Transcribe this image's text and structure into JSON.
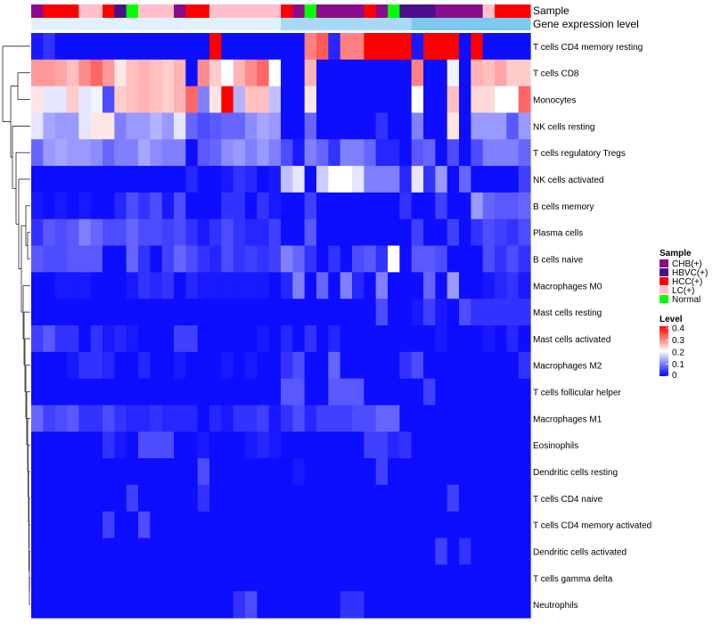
{
  "chart_data": {
    "type": "heatmap",
    "title": "",
    "row_labels": [
      "T cells CD4 memory resting",
      "T cells CD8",
      "Monocytes",
      "NK cells resting",
      "T cells regulatory  Tregs",
      "NK cells activated",
      "B cells memory",
      "Plasma cells",
      "B cells naive",
      "Macrophages M0",
      "Mast cells resting",
      "Mast cells activated",
      "Macrophages M2",
      "T cells follicular helper",
      "Macrophages M1",
      "Eosinophils",
      "Dendritic cells resting",
      "T cells CD4 naive",
      "T cells CD4 memory activated",
      "Dendritic cells activated",
      "T cells gamma delta",
      "Neutrophils"
    ],
    "annotation_tracks": [
      {
        "name": "Sample",
        "values": [
          "CHB(+)",
          "HCC(+)",
          "HCC(+)",
          "HCC(+)",
          "LC(+)",
          "LC(+)",
          "HCC(+)",
          "HBVC(+)",
          "Normal",
          "LC(+)",
          "LC(+)",
          "LC(+)",
          "CHB(+)",
          "HCC(+)",
          "HCC(+)",
          "LC(+)",
          "LC(+)",
          "LC(+)",
          "LC(+)",
          "LC(+)",
          "LC(+)",
          "HCC(+)",
          "CHB(+)",
          "Normal",
          "CHB(+)",
          "CHB(+)",
          "CHB(+)",
          "CHB(+)",
          "HCC(+)",
          "CHB(+)",
          "Normal",
          "HBVC(+)",
          "HBVC(+)",
          "HBVC(+)",
          "CHB(+)",
          "CHB(+)",
          "CHB(+)",
          "CHB(+)",
          "LC(+)",
          "HCC(+)",
          "HCC(+)",
          "HCC(+)"
        ]
      },
      {
        "name": "Gene expression level",
        "values": [
          "low",
          "low",
          "low",
          "low",
          "low",
          "low",
          "low",
          "low",
          "low",
          "low",
          "low",
          "low",
          "low",
          "low",
          "low",
          "low",
          "low",
          "low",
          "low",
          "low",
          "low",
          "mid",
          "mid",
          "mid",
          "mid",
          "mid",
          "mid",
          "mid",
          "mid",
          "mid",
          "mid",
          "mid",
          "high",
          "high",
          "high",
          "high",
          "high",
          "high",
          "high",
          "high",
          "high",
          "high"
        ]
      }
    ],
    "legend_sample": {
      "title": "Sample",
      "entries": [
        {
          "label": "CHB(+)",
          "color": "#8b0d8b"
        },
        {
          "label": "HBVC(+)",
          "color": "#4b0f8b"
        },
        {
          "label": "HCC(+)",
          "color": "#ff0000"
        },
        {
          "label": "LC(+)",
          "color": "#ffc0cb"
        },
        {
          "label": "Normal",
          "color": "#00ff00"
        }
      ]
    },
    "legend_level": {
      "title": "Level",
      "ticks": [
        "0.4",
        "0.3",
        "0.2",
        "0.1",
        "0"
      ],
      "range": [
        0,
        0.4
      ],
      "colors": [
        "#0000ff",
        "#ffffff",
        "#ff0000"
      ]
    },
    "expression_level_colors": {
      "low": "#e0f1fb",
      "mid": "#a9daf5",
      "high": "#7fc8f0"
    },
    "values": [
      [
        0.02,
        0.04,
        0.01,
        0.01,
        0.01,
        0.01,
        0.01,
        0.01,
        0.01,
        0.01,
        0.01,
        0.01,
        0.01,
        0.01,
        0.01,
        0.4,
        0.01,
        0.01,
        0.01,
        0.01,
        0.01,
        0.01,
        0.01,
        0.3,
        0.33,
        0.03,
        0.3,
        0.3,
        0.4,
        0.4,
        0.4,
        0.4,
        0.02,
        0.4,
        0.4,
        0.4,
        0.01,
        0.4,
        0.01,
        0.01,
        0.01,
        0.01
      ],
      [
        0.28,
        0.28,
        0.27,
        0.25,
        0.29,
        0.32,
        0.28,
        0.22,
        0.25,
        0.26,
        0.25,
        0.24,
        0.26,
        0.01,
        0.29,
        0.24,
        0.2,
        0.26,
        0.29,
        0.32,
        0.2,
        0.01,
        0.01,
        0.26,
        0.01,
        0.01,
        0.01,
        0.01,
        0.01,
        0.01,
        0.01,
        0.01,
        0.3,
        0.01,
        0.01,
        0.19,
        0.01,
        0.26,
        0.25,
        0.27,
        0.24,
        0.24
      ],
      [
        0.22,
        0.18,
        0.18,
        0.24,
        0.18,
        0.19,
        0.06,
        0.24,
        0.25,
        0.26,
        0.25,
        0.24,
        0.26,
        0.32,
        0.1,
        0.22,
        0.4,
        0.14,
        0.25,
        0.25,
        0.15,
        0.01,
        0.01,
        0.22,
        0.01,
        0.01,
        0.01,
        0.01,
        0.01,
        0.01,
        0.01,
        0.01,
        0.2,
        0.01,
        0.01,
        0.25,
        0.01,
        0.23,
        0.23,
        0.2,
        0.2,
        0.32
      ],
      [
        0.18,
        0.13,
        0.12,
        0.12,
        0.18,
        0.22,
        0.22,
        0.1,
        0.12,
        0.12,
        0.14,
        0.12,
        0.18,
        0.08,
        0.06,
        0.07,
        0.08,
        0.08,
        0.11,
        0.13,
        0.12,
        0.01,
        0.01,
        0.08,
        0.01,
        0.01,
        0.01,
        0.01,
        0.01,
        0.04,
        0.01,
        0.01,
        0.1,
        0.01,
        0.01,
        0.22,
        0.01,
        0.12,
        0.12,
        0.12,
        0.07,
        0.12
      ],
      [
        0.08,
        0.12,
        0.13,
        0.12,
        0.12,
        0.11,
        0.08,
        0.1,
        0.1,
        0.13,
        0.11,
        0.1,
        0.1,
        0.01,
        0.07,
        0.08,
        0.11,
        0.12,
        0.1,
        0.12,
        0.1,
        0.06,
        0.02,
        0.1,
        0.08,
        0.04,
        0.1,
        0.1,
        0.08,
        0.03,
        0.03,
        0.01,
        0.07,
        0.08,
        0.01,
        0.06,
        0.01,
        0.06,
        0.1,
        0.1,
        0.1,
        0.08
      ],
      [
        0.01,
        0.01,
        0.01,
        0.01,
        0.01,
        0.01,
        0.01,
        0.01,
        0.01,
        0.01,
        0.01,
        0.01,
        0.01,
        0.03,
        0.01,
        0.01,
        0.02,
        0.04,
        0.03,
        0.01,
        0.02,
        0.15,
        0.18,
        0.01,
        0.16,
        0.2,
        0.2,
        0.18,
        0.1,
        0.1,
        0.1,
        0.03,
        0.18,
        0.04,
        0.12,
        0.01,
        0.08,
        0.01,
        0.01,
        0.01,
        0.01,
        0.05
      ],
      [
        0.02,
        0.01,
        0.02,
        0.01,
        0.02,
        0.01,
        0.01,
        0.03,
        0.06,
        0.04,
        0.06,
        0.02,
        0.06,
        0.01,
        0.01,
        0.01,
        0.04,
        0.04,
        0.01,
        0.04,
        0.02,
        0.01,
        0.01,
        0.05,
        0.01,
        0.01,
        0.01,
        0.01,
        0.01,
        0.01,
        0.01,
        0.04,
        0.01,
        0.01,
        0.05,
        0.01,
        0.01,
        0.12,
        0.08,
        0.07,
        0.07,
        0.08
      ],
      [
        0.04,
        0.07,
        0.06,
        0.07,
        0.1,
        0.08,
        0.06,
        0.06,
        0.08,
        0.06,
        0.06,
        0.05,
        0.06,
        0.04,
        0.02,
        0.04,
        0.06,
        0.04,
        0.03,
        0.03,
        0.05,
        0.01,
        0.01,
        0.07,
        0.01,
        0.01,
        0.01,
        0.01,
        0.01,
        0.01,
        0.01,
        0.01,
        0.05,
        0.01,
        0.01,
        0.05,
        0.01,
        0.04,
        0.06,
        0.05,
        0.04,
        0.06
      ],
      [
        0.07,
        0.06,
        0.06,
        0.07,
        0.07,
        0.07,
        0.01,
        0.01,
        0.08,
        0.04,
        0.01,
        0.05,
        0.08,
        0.06,
        0.04,
        0.03,
        0.06,
        0.04,
        0.05,
        0.04,
        0.05,
        0.1,
        0.08,
        0.04,
        0.01,
        0.04,
        0.01,
        0.06,
        0.07,
        0.04,
        0.2,
        0.01,
        0.07,
        0.07,
        0.06,
        0.01,
        0.01,
        0.01,
        0.06,
        0.04,
        0.06,
        0.04
      ],
      [
        0.01,
        0.01,
        0.02,
        0.02,
        0.02,
        0.01,
        0.01,
        0.01,
        0.02,
        0.04,
        0.03,
        0.04,
        0.01,
        0.03,
        0.02,
        0.02,
        0.02,
        0.02,
        0.02,
        0.02,
        0.01,
        0.03,
        0.1,
        0.01,
        0.08,
        0.01,
        0.1,
        0.03,
        0.01,
        0.1,
        0.01,
        0.01,
        0.01,
        0.08,
        0.01,
        0.12,
        0.01,
        0.01,
        0.02,
        0.03,
        0.04,
        0.02
      ],
      [
        0.01,
        0.01,
        0.01,
        0.01,
        0.01,
        0.01,
        0.01,
        0.01,
        0.01,
        0.01,
        0.01,
        0.01,
        0.01,
        0.01,
        0.01,
        0.01,
        0.01,
        0.01,
        0.01,
        0.01,
        0.01,
        0.01,
        0.01,
        0.01,
        0.01,
        0.01,
        0.01,
        0.01,
        0.01,
        0.06,
        0.01,
        0.01,
        0.02,
        0.05,
        0.02,
        0.01,
        0.06,
        0.04,
        0.04,
        0.04,
        0.04,
        0.04
      ],
      [
        0.05,
        0.07,
        0.04,
        0.04,
        0.01,
        0.04,
        0.02,
        0.03,
        0.02,
        0.01,
        0.01,
        0.01,
        0.05,
        0.05,
        0.01,
        0.01,
        0.01,
        0.01,
        0.01,
        0.02,
        0.01,
        0.03,
        0.01,
        0.04,
        0.01,
        0.03,
        0.01,
        0.01,
        0.01,
        0.01,
        0.01,
        0.01,
        0.01,
        0.01,
        0.02,
        0.01,
        0.01,
        0.01,
        0.02,
        0.01,
        0.03,
        0.01
      ],
      [
        0.01,
        0.01,
        0.01,
        0.02,
        0.04,
        0.04,
        0.03,
        0.01,
        0.01,
        0.03,
        0.01,
        0.01,
        0.02,
        0.01,
        0.01,
        0.01,
        0.02,
        0.01,
        0.02,
        0.01,
        0.01,
        0.04,
        0.06,
        0.01,
        0.01,
        0.08,
        0.01,
        0.01,
        0.01,
        0.01,
        0.01,
        0.04,
        0.06,
        0.01,
        0.01,
        0.01,
        0.01,
        0.01,
        0.01,
        0.01,
        0.01,
        0.04
      ],
      [
        0.01,
        0.01,
        0.01,
        0.01,
        0.01,
        0.01,
        0.01,
        0.01,
        0.01,
        0.01,
        0.01,
        0.01,
        0.01,
        0.01,
        0.01,
        0.01,
        0.01,
        0.01,
        0.01,
        0.01,
        0.01,
        0.07,
        0.07,
        0.01,
        0.01,
        0.07,
        0.07,
        0.07,
        0.01,
        0.01,
        0.01,
        0.01,
        0.01,
        0.05,
        0.01,
        0.01,
        0.01,
        0.01,
        0.01,
        0.01,
        0.01,
        0.01
      ],
      [
        0.08,
        0.05,
        0.06,
        0.07,
        0.04,
        0.04,
        0.06,
        0.04,
        0.03,
        0.03,
        0.04,
        0.03,
        0.03,
        0.03,
        0.01,
        0.03,
        0.02,
        0.04,
        0.04,
        0.05,
        0.02,
        0.04,
        0.06,
        0.03,
        0.05,
        0.05,
        0.05,
        0.06,
        0.06,
        0.08,
        0.08,
        0.01,
        0.01,
        0.01,
        0.01,
        0.01,
        0.01,
        0.01,
        0.01,
        0.01,
        0.01,
        0.01
      ],
      [
        0.01,
        0.01,
        0.01,
        0.01,
        0.01,
        0.01,
        0.04,
        0.02,
        0.01,
        0.06,
        0.06,
        0.06,
        0.01,
        0.01,
        0.02,
        0.01,
        0.01,
        0.01,
        0.02,
        0.03,
        0.02,
        0.01,
        0.01,
        0.01,
        0.01,
        0.01,
        0.01,
        0.01,
        0.05,
        0.05,
        0.03,
        0.04,
        0.01,
        0.01,
        0.01,
        0.01,
        0.01,
        0.01,
        0.01,
        0.01,
        0.01,
        0.01
      ],
      [
        0.01,
        0.01,
        0.01,
        0.01,
        0.01,
        0.01,
        0.01,
        0.01,
        0.01,
        0.01,
        0.01,
        0.01,
        0.01,
        0.01,
        0.06,
        0.01,
        0.01,
        0.01,
        0.01,
        0.01,
        0.01,
        0.01,
        0.02,
        0.01,
        0.01,
        0.01,
        0.01,
        0.01,
        0.01,
        0.05,
        0.01,
        0.01,
        0.01,
        0.01,
        0.01,
        0.01,
        0.01,
        0.01,
        0.01,
        0.01,
        0.01,
        0.01
      ],
      [
        0.01,
        0.01,
        0.01,
        0.01,
        0.01,
        0.01,
        0.01,
        0.01,
        0.05,
        0.01,
        0.01,
        0.01,
        0.01,
        0.01,
        0.04,
        0.01,
        0.01,
        0.01,
        0.01,
        0.01,
        0.01,
        0.01,
        0.01,
        0.01,
        0.01,
        0.01,
        0.01,
        0.01,
        0.01,
        0.01,
        0.01,
        0.01,
        0.01,
        0.01,
        0.01,
        0.05,
        0.01,
        0.01,
        0.01,
        0.01,
        0.01,
        0.01
      ],
      [
        0.01,
        0.01,
        0.01,
        0.01,
        0.01,
        0.01,
        0.05,
        0.01,
        0.01,
        0.06,
        0.01,
        0.01,
        0.01,
        0.01,
        0.01,
        0.01,
        0.01,
        0.01,
        0.01,
        0.01,
        0.01,
        0.01,
        0.01,
        0.01,
        0.01,
        0.01,
        0.01,
        0.01,
        0.01,
        0.01,
        0.01,
        0.01,
        0.01,
        0.01,
        0.01,
        0.01,
        0.01,
        0.01,
        0.01,
        0.01,
        0.01,
        0.01
      ],
      [
        0.01,
        0.01,
        0.01,
        0.01,
        0.01,
        0.01,
        0.01,
        0.01,
        0.01,
        0.01,
        0.01,
        0.01,
        0.01,
        0.01,
        0.01,
        0.01,
        0.01,
        0.01,
        0.01,
        0.01,
        0.01,
        0.01,
        0.01,
        0.01,
        0.01,
        0.01,
        0.01,
        0.01,
        0.01,
        0.01,
        0.01,
        0.01,
        0.01,
        0.01,
        0.05,
        0.01,
        0.04,
        0.01,
        0.01,
        0.01,
        0.01,
        0.01
      ],
      [
        0.01,
        0.01,
        0.01,
        0.01,
        0.01,
        0.01,
        0.01,
        0.01,
        0.01,
        0.01,
        0.01,
        0.01,
        0.01,
        0.01,
        0.01,
        0.01,
        0.01,
        0.01,
        0.01,
        0.01,
        0.01,
        0.01,
        0.01,
        0.01,
        0.01,
        0.01,
        0.01,
        0.01,
        0.01,
        0.01,
        0.01,
        0.01,
        0.01,
        0.01,
        0.01,
        0.01,
        0.01,
        0.01,
        0.01,
        0.01,
        0.01,
        0.01
      ],
      [
        0.01,
        0.01,
        0.01,
        0.01,
        0.01,
        0.01,
        0.01,
        0.01,
        0.01,
        0.01,
        0.01,
        0.01,
        0.01,
        0.01,
        0.01,
        0.01,
        0.01,
        0.04,
        0.06,
        0.01,
        0.01,
        0.01,
        0.01,
        0.01,
        0.01,
        0.01,
        0.04,
        0.04,
        0.01,
        0.01,
        0.01,
        0.01,
        0.01,
        0.01,
        0.01,
        0.01,
        0.01,
        0.01,
        0.01,
        0.01,
        0.01,
        0.01
      ]
    ]
  }
}
